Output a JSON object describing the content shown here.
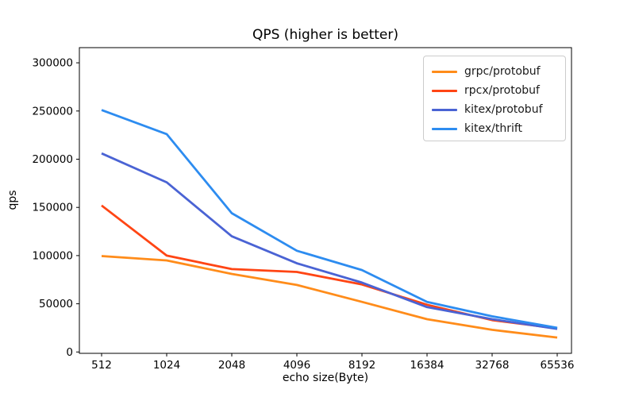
{
  "chart_data": {
    "type": "line",
    "title": "QPS (higher is better)",
    "xlabel": "echo size(Byte)",
    "ylabel": "qps",
    "x_scale": "log2-categorical",
    "categories": [
      "512",
      "1024",
      "2048",
      "4096",
      "8192",
      "16384",
      "32768",
      "65536"
    ],
    "y_ticks": [
      0,
      50000,
      100000,
      150000,
      200000,
      250000,
      300000
    ],
    "ylim": [
      0,
      315000
    ],
    "grid": false,
    "legend_position": "upper-right",
    "axis_color": "#000000",
    "series": [
      {
        "name": "grpc/protobuf",
        "color": "#ff8c1a",
        "values": [
          99500,
          95000,
          81000,
          69500,
          52000,
          34000,
          23000,
          15000
        ]
      },
      {
        "name": "rpcx/protobuf",
        "color": "#ff4514",
        "values": [
          152000,
          100000,
          86000,
          83000,
          70000,
          49000,
          33000,
          24500
        ]
      },
      {
        "name": "kitex/protobuf",
        "color": "#4a63d4",
        "values": [
          206000,
          176000,
          120000,
          92000,
          72000,
          46500,
          34000,
          24000
        ]
      },
      {
        "name": "kitex/thrift",
        "color": "#2d8cf0",
        "values": [
          251000,
          226000,
          144000,
          105000,
          85000,
          52000,
          37000,
          25000
        ]
      }
    ]
  }
}
